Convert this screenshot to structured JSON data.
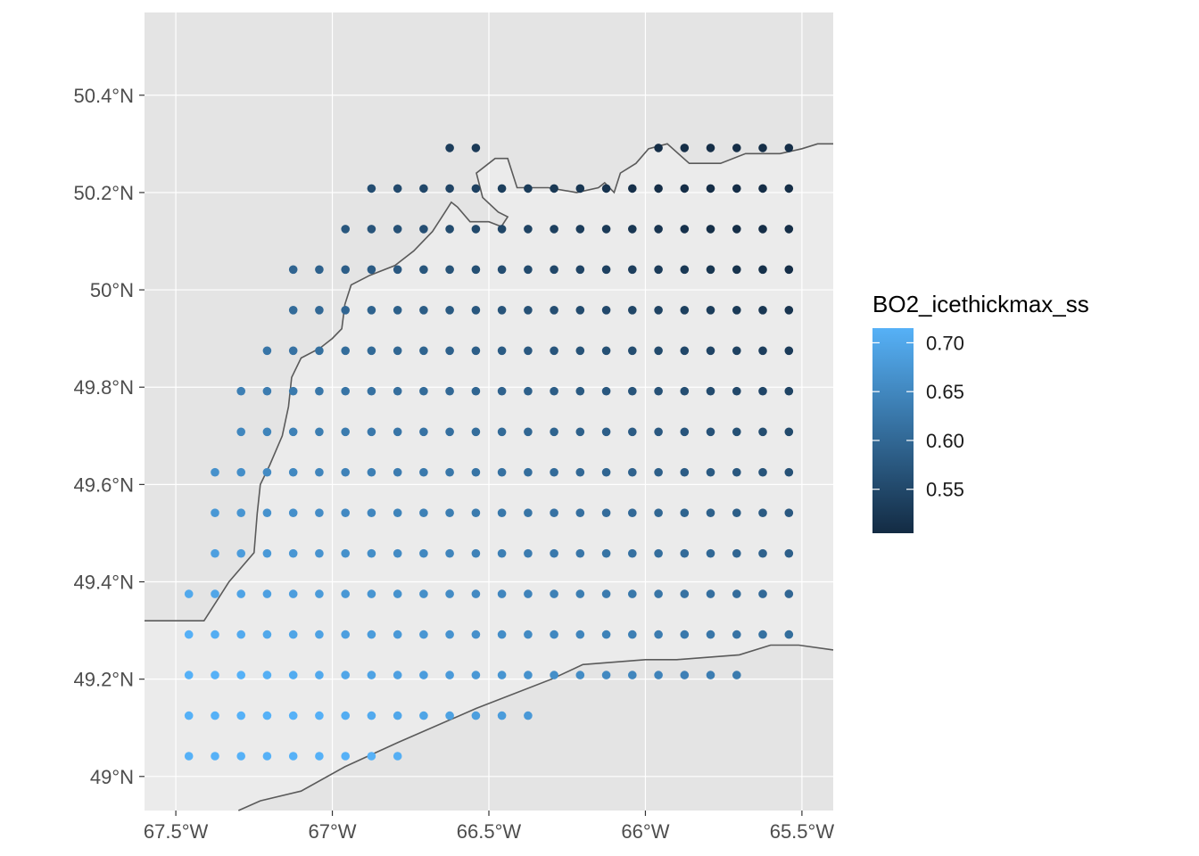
{
  "chart_data": {
    "type": "scatter",
    "title": "",
    "xlabel": "",
    "ylabel": "",
    "xlim": [
      -67.6,
      -65.4
    ],
    "ylim": [
      48.93,
      50.57
    ],
    "x_ticks": [
      {
        "value": -67.5,
        "label": "67.5°W"
      },
      {
        "value": -67.0,
        "label": "67°W"
      },
      {
        "value": -66.5,
        "label": "66.5°W"
      },
      {
        "value": -66.0,
        "label": "66°W"
      },
      {
        "value": -65.5,
        "label": "65.5°W"
      }
    ],
    "y_ticks": [
      {
        "value": 49.0,
        "label": "49°N"
      },
      {
        "value": 49.2,
        "label": "49.2°N"
      },
      {
        "value": 49.4,
        "label": "49.4°N"
      },
      {
        "value": 49.6,
        "label": "49.6°N"
      },
      {
        "value": 49.8,
        "label": "49.8°N"
      },
      {
        "value": 50.0,
        "label": "50°N"
      },
      {
        "value": 50.2,
        "label": "50.2°N"
      },
      {
        "value": 50.4,
        "label": "50.4°N"
      }
    ],
    "grid": true,
    "legend": {
      "title": "BO2_icethickmax_ss",
      "position": "right",
      "range": [
        0.505,
        0.715
      ],
      "breaks": [
        0.7,
        0.65,
        0.6,
        0.55
      ],
      "break_labels": [
        "0.70",
        "0.65",
        "0.60",
        "0.55"
      ],
      "color_low": "#132b43",
      "color_high": "#56b1f7"
    },
    "grid_points": {
      "lon_start": -67.4583,
      "lon_step": 0.08333,
      "lat_rows": [
        {
          "lat": 50.2917,
          "cols": [
            10,
            11,
            18,
            19,
            20,
            21,
            22,
            23
          ]
        },
        {
          "lat": 50.2083,
          "cols": [
            7,
            8,
            9,
            10,
            11,
            12,
            13,
            14,
            15,
            16,
            17,
            18,
            19,
            20,
            21,
            22,
            23
          ]
        },
        {
          "lat": 50.125,
          "cols": [
            6,
            7,
            8,
            9,
            10,
            11,
            12,
            13,
            14,
            15,
            16,
            17,
            18,
            19,
            20,
            21,
            22,
            23
          ]
        },
        {
          "lat": 50.0417,
          "cols": [
            4,
            5,
            6,
            7,
            8,
            9,
            10,
            11,
            12,
            13,
            14,
            15,
            16,
            17,
            18,
            19,
            20,
            21,
            22,
            23
          ]
        },
        {
          "lat": 49.9583,
          "cols": [
            4,
            5,
            6,
            7,
            8,
            9,
            10,
            11,
            12,
            13,
            14,
            15,
            16,
            17,
            18,
            19,
            20,
            21,
            22,
            23
          ]
        },
        {
          "lat": 49.875,
          "cols": [
            3,
            4,
            5,
            6,
            7,
            8,
            9,
            10,
            11,
            12,
            13,
            14,
            15,
            16,
            17,
            18,
            19,
            20,
            21,
            22,
            23
          ]
        },
        {
          "lat": 49.7917,
          "cols": [
            2,
            3,
            4,
            5,
            6,
            7,
            8,
            9,
            10,
            11,
            12,
            13,
            14,
            15,
            16,
            17,
            18,
            19,
            20,
            21,
            22,
            23
          ]
        },
        {
          "lat": 49.7083,
          "cols": [
            2,
            3,
            4,
            5,
            6,
            7,
            8,
            9,
            10,
            11,
            12,
            13,
            14,
            15,
            16,
            17,
            18,
            19,
            20,
            21,
            22,
            23
          ]
        },
        {
          "lat": 49.625,
          "cols": [
            1,
            2,
            3,
            4,
            5,
            6,
            7,
            8,
            9,
            10,
            11,
            12,
            13,
            14,
            15,
            16,
            17,
            18,
            19,
            20,
            21,
            22,
            23
          ]
        },
        {
          "lat": 49.5417,
          "cols": [
            1,
            2,
            3,
            4,
            5,
            6,
            7,
            8,
            9,
            10,
            11,
            12,
            13,
            14,
            15,
            16,
            17,
            18,
            19,
            20,
            21,
            22,
            23
          ]
        },
        {
          "lat": 49.4583,
          "cols": [
            1,
            2,
            3,
            4,
            5,
            6,
            7,
            8,
            9,
            10,
            11,
            12,
            13,
            14,
            15,
            16,
            17,
            18,
            19,
            20,
            21,
            22,
            23
          ]
        },
        {
          "lat": 49.375,
          "cols": [
            0,
            1,
            2,
            3,
            4,
            5,
            6,
            7,
            8,
            9,
            10,
            11,
            12,
            13,
            14,
            15,
            16,
            17,
            18,
            19,
            20,
            21,
            22,
            23
          ]
        },
        {
          "lat": 49.2917,
          "cols": [
            0,
            1,
            2,
            3,
            4,
            5,
            6,
            7,
            8,
            9,
            10,
            11,
            12,
            13,
            14,
            15,
            16,
            17,
            18,
            19,
            20,
            21,
            22,
            23
          ]
        },
        {
          "lat": 49.2083,
          "cols": [
            0,
            1,
            2,
            3,
            4,
            5,
            6,
            7,
            8,
            9,
            10,
            11,
            12,
            13,
            14,
            15,
            16,
            17,
            18,
            19,
            20,
            21
          ]
        },
        {
          "lat": 49.125,
          "cols": [
            0,
            1,
            2,
            3,
            4,
            5,
            6,
            7,
            8,
            9,
            10,
            11,
            12,
            13
          ]
        },
        {
          "lat": 49.0417,
          "cols": [
            0,
            1,
            2,
            3,
            4,
            5,
            6,
            7,
            8
          ]
        }
      ],
      "value_model": {
        "base": 0.62,
        "lon_coeff": 0.0545,
        "lat_coeff": 0.135,
        "ref_lon": -66.5,
        "ref_lat": 49.6,
        "min": 0.51,
        "max": 0.715
      }
    },
    "coastline_north": [
      [
        -67.6,
        49.32
      ],
      [
        -67.41,
        49.32
      ],
      [
        -67.36,
        49.37
      ],
      [
        -67.33,
        49.4
      ],
      [
        -67.25,
        49.46
      ],
      [
        -67.24,
        49.54
      ],
      [
        -67.23,
        49.6
      ],
      [
        -67.2,
        49.64
      ],
      [
        -67.16,
        49.7
      ],
      [
        -67.14,
        49.76
      ],
      [
        -67.13,
        49.82
      ],
      [
        -67.1,
        49.86
      ],
      [
        -67.04,
        49.88
      ],
      [
        -67.0,
        49.9
      ],
      [
        -66.97,
        49.92
      ],
      [
        -66.96,
        49.97
      ],
      [
        -66.94,
        50.01
      ],
      [
        -66.88,
        50.03
      ],
      [
        -66.8,
        50.05
      ],
      [
        -66.74,
        50.08
      ],
      [
        -66.68,
        50.12
      ],
      [
        -66.64,
        50.16
      ],
      [
        -66.62,
        50.18
      ],
      [
        -66.6,
        50.17
      ],
      [
        -66.56,
        50.14
      ],
      [
        -66.5,
        50.14
      ],
      [
        -66.46,
        50.13
      ],
      [
        -66.44,
        50.15
      ],
      [
        -66.47,
        50.16
      ],
      [
        -66.52,
        50.19
      ],
      [
        -66.54,
        50.24
      ],
      [
        -66.48,
        50.27
      ],
      [
        -66.44,
        50.27
      ],
      [
        -66.41,
        50.21
      ],
      [
        -66.31,
        50.21
      ],
      [
        -66.22,
        50.2
      ],
      [
        -66.15,
        50.21
      ],
      [
        -66.13,
        50.22
      ],
      [
        -66.1,
        50.2
      ],
      [
        -66.08,
        50.24
      ],
      [
        -66.03,
        50.26
      ],
      [
        -65.99,
        50.29
      ],
      [
        -65.93,
        50.3
      ],
      [
        -65.86,
        50.26
      ],
      [
        -65.76,
        50.26
      ],
      [
        -65.68,
        50.28
      ],
      [
        -65.57,
        50.28
      ],
      [
        -65.5,
        50.29
      ],
      [
        -65.45,
        50.3
      ],
      [
        -65.4,
        50.3
      ]
    ],
    "coastline_south": [
      [
        -67.3,
        48.93
      ],
      [
        -67.23,
        48.95
      ],
      [
        -67.1,
        48.97
      ],
      [
        -66.96,
        49.02
      ],
      [
        -66.79,
        49.07
      ],
      [
        -66.54,
        49.14
      ],
      [
        -66.3,
        49.2
      ],
      [
        -66.2,
        49.23
      ],
      [
        -66.0,
        49.24
      ],
      [
        -65.9,
        49.24
      ],
      [
        -65.7,
        49.25
      ],
      [
        -65.6,
        49.27
      ],
      [
        -65.51,
        49.27
      ],
      [
        -65.4,
        49.26
      ]
    ]
  }
}
